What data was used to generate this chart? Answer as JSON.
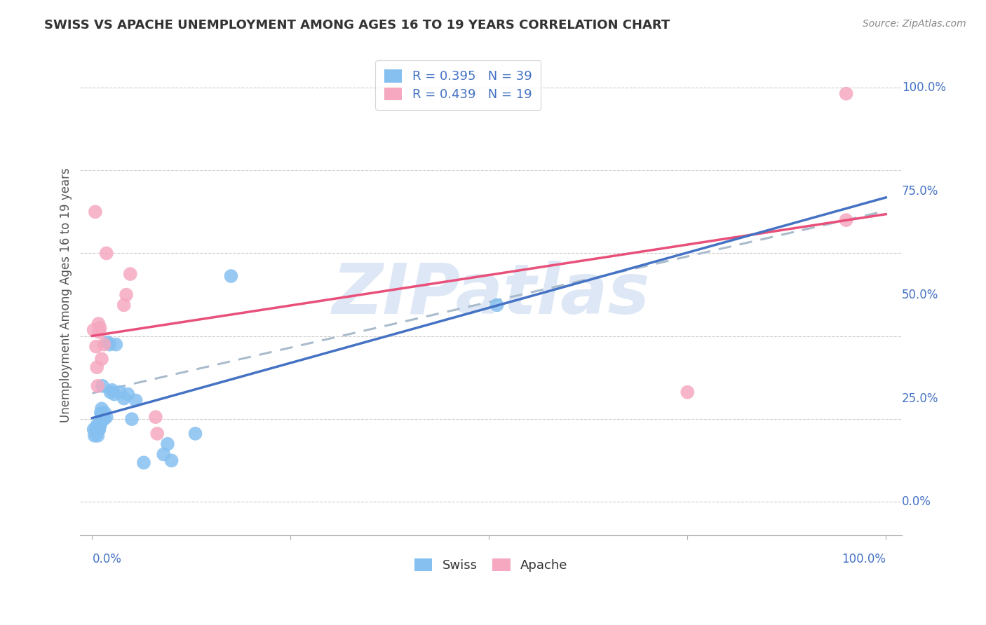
{
  "title": "SWISS VS APACHE UNEMPLOYMENT AMONG AGES 16 TO 19 YEARS CORRELATION CHART",
  "source": "Source: ZipAtlas.com",
  "ylabel": "Unemployment Among Ages 16 to 19 years",
  "swiss_R": 0.395,
  "swiss_N": 39,
  "apache_R": 0.439,
  "apache_N": 19,
  "swiss_color": "#85C0F0",
  "apache_color": "#F5A8C0",
  "trendline_swiss_color": "#4472C4",
  "trendline_apache_color": "#E8507A",
  "trendline_gray_color": "#AABBCC",
  "watermark_text": "ZIPatlas",
  "watermark_color": "#C8D8F0",
  "swiss_x": [
    0.002,
    0.003,
    0.004,
    0.005,
    0.005,
    0.006,
    0.006,
    0.007,
    0.008,
    0.008,
    0.009,
    0.01,
    0.01,
    0.011,
    0.012,
    0.012,
    0.013,
    0.014,
    0.015,
    0.016,
    0.018,
    0.02,
    0.022,
    0.023,
    0.025,
    0.028,
    0.03,
    0.035,
    0.04,
    0.045,
    0.05,
    0.055,
    0.065,
    0.09,
    0.095,
    0.1,
    0.13,
    0.175,
    0.51
  ],
  "swiss_y": [
    0.175,
    0.16,
    0.17,
    0.175,
    0.165,
    0.175,
    0.185,
    0.16,
    0.185,
    0.175,
    0.175,
    0.19,
    0.185,
    0.215,
    0.21,
    0.225,
    0.28,
    0.2,
    0.2,
    0.215,
    0.205,
    0.385,
    0.38,
    0.265,
    0.27,
    0.26,
    0.38,
    0.265,
    0.25,
    0.26,
    0.2,
    0.245,
    0.095,
    0.115,
    0.14,
    0.1,
    0.165,
    0.545,
    0.475
  ],
  "apache_x": [
    0.002,
    0.004,
    0.005,
    0.006,
    0.007,
    0.008,
    0.009,
    0.01,
    0.012,
    0.015,
    0.018,
    0.04,
    0.043,
    0.048,
    0.08,
    0.082,
    0.75,
    0.95,
    0.95
  ],
  "apache_y": [
    0.415,
    0.7,
    0.375,
    0.325,
    0.28,
    0.43,
    0.41,
    0.42,
    0.345,
    0.38,
    0.6,
    0.475,
    0.5,
    0.55,
    0.205,
    0.165,
    0.265,
    0.985,
    0.68
  ],
  "xlim": [
    -0.015,
    1.02
  ],
  "ylim": [
    -0.08,
    1.08
  ],
  "xticks": [
    0.0,
    0.25,
    0.5,
    0.75,
    1.0
  ],
  "yticks": [
    0.0,
    0.25,
    0.5,
    0.75,
    1.0
  ],
  "ytick_labels": [
    "0.0%",
    "25.0%",
    "50.0%",
    "75.0%",
    "100.0%"
  ],
  "xtick_labels_show": [
    "0.0%",
    "100.0%"
  ]
}
